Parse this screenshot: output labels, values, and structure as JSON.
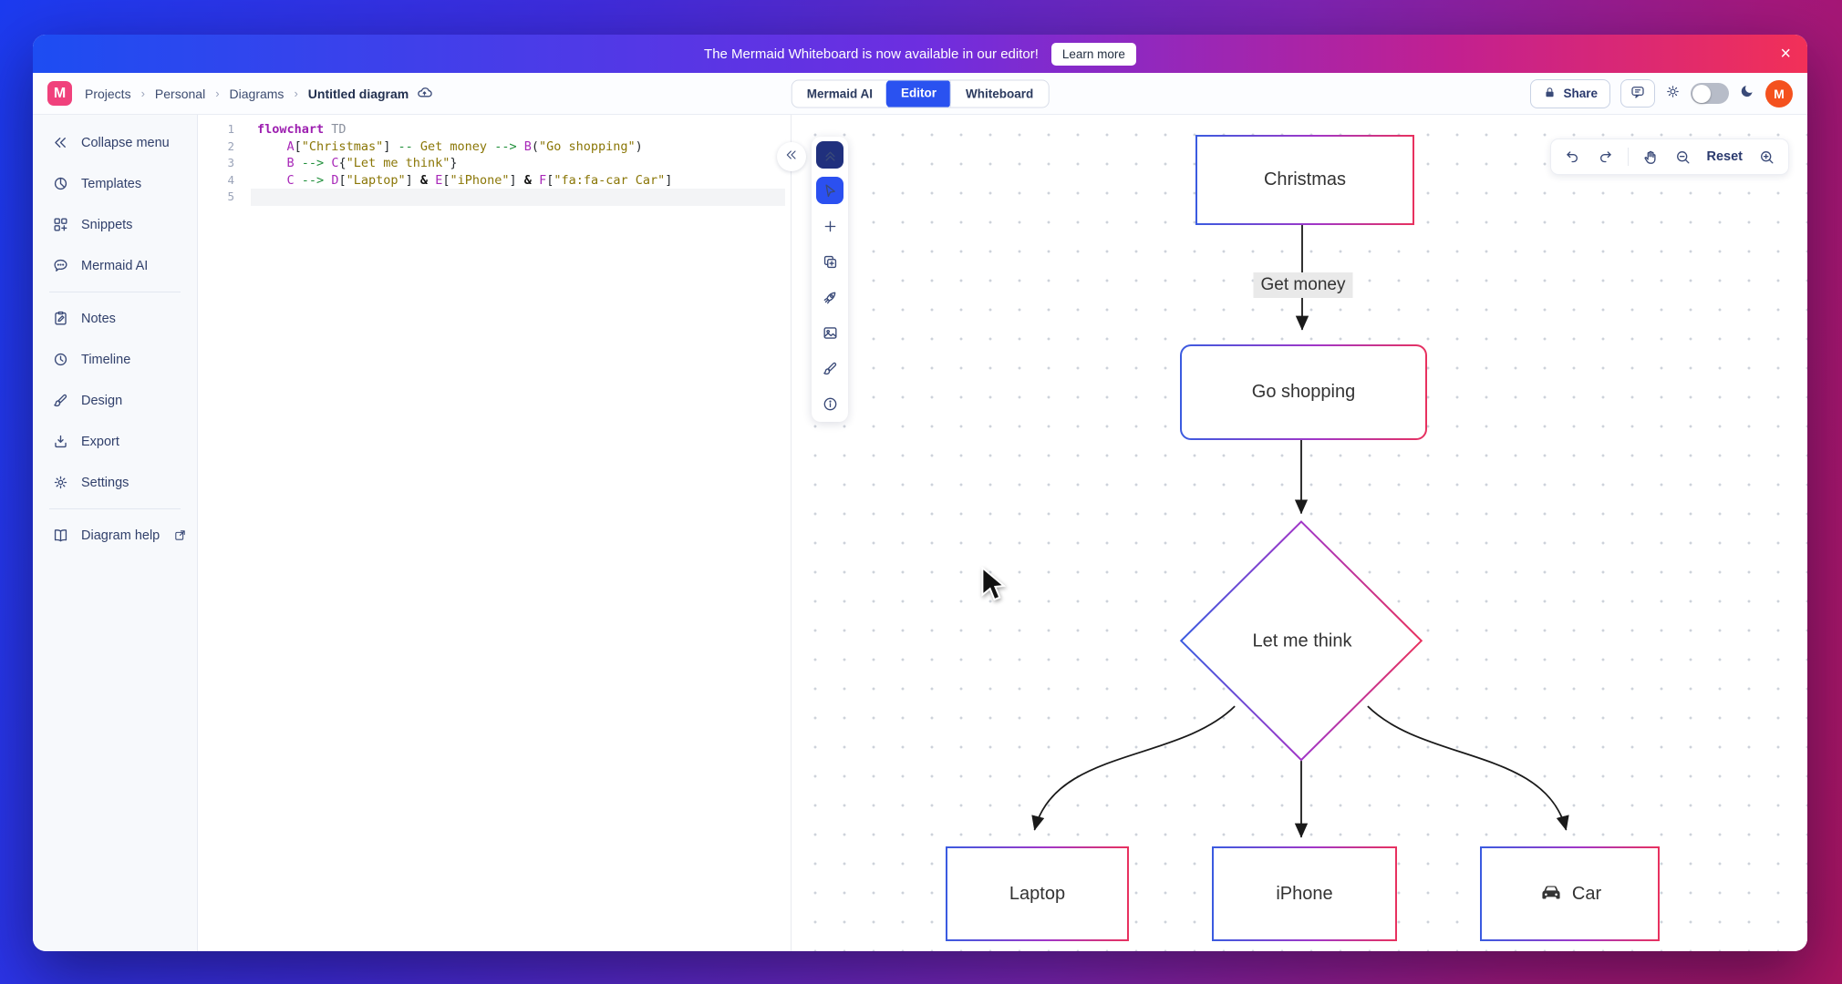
{
  "banner": {
    "message": "The Mermaid Whiteboard is now available in our editor!",
    "cta": "Learn more",
    "close": "×"
  },
  "header": {
    "logo_letter": "M",
    "breadcrumbs": [
      "Projects",
      "Personal",
      "Diagrams"
    ],
    "separator": "›",
    "doc_title": "Untitled diagram",
    "tabs": [
      "Mermaid AI",
      "Editor",
      "Whiteboard"
    ],
    "active_tab": "Editor",
    "share_label": "Share",
    "avatar_initial": "M"
  },
  "sidebar": {
    "items": [
      {
        "icon": "chevrons-left",
        "label": "Collapse menu"
      },
      {
        "icon": "templates",
        "label": "Templates"
      },
      {
        "icon": "snippets",
        "label": "Snippets"
      },
      {
        "icon": "chat",
        "label": "Mermaid AI",
        "divider_after": true
      },
      {
        "icon": "notes",
        "label": "Notes"
      },
      {
        "icon": "timeline",
        "label": "Timeline"
      },
      {
        "icon": "brush",
        "label": "Design"
      },
      {
        "icon": "export",
        "label": "Export"
      },
      {
        "icon": "gear",
        "label": "Settings",
        "divider_after": true
      },
      {
        "icon": "book",
        "label": "Diagram help",
        "external": true
      }
    ]
  },
  "editor": {
    "lines": [
      {
        "num": "1",
        "tokens": [
          [
            "kw",
            "flowchart"
          ],
          [
            "pln",
            " "
          ],
          [
            "dir",
            "TD"
          ]
        ]
      },
      {
        "num": "2",
        "tokens": [
          [
            "pln",
            "    "
          ],
          [
            "id",
            "A"
          ],
          [
            "pun",
            "["
          ],
          [
            "str",
            "\"Christmas\""
          ],
          [
            "pun",
            "]"
          ],
          [
            "pln",
            " "
          ],
          [
            "arr",
            "--"
          ],
          [
            "pln",
            " "
          ],
          [
            "str",
            "Get money"
          ],
          [
            "pln",
            " "
          ],
          [
            "arr",
            "-->"
          ],
          [
            "pln",
            " "
          ],
          [
            "id",
            "B"
          ],
          [
            "pun",
            "("
          ],
          [
            "str",
            "\"Go shopping\""
          ],
          [
            "pun",
            ")"
          ]
        ]
      },
      {
        "num": "3",
        "tokens": [
          [
            "pln",
            "    "
          ],
          [
            "id",
            "B"
          ],
          [
            "pln",
            " "
          ],
          [
            "arr",
            "-->"
          ],
          [
            "pln",
            " "
          ],
          [
            "id",
            "C"
          ],
          [
            "pun",
            "{"
          ],
          [
            "str",
            "\"Let me think\""
          ],
          [
            "pun",
            "}"
          ]
        ]
      },
      {
        "num": "4",
        "tokens": [
          [
            "pln",
            "    "
          ],
          [
            "id",
            "C"
          ],
          [
            "pln",
            " "
          ],
          [
            "arr",
            "-->"
          ],
          [
            "pln",
            " "
          ],
          [
            "id",
            "D"
          ],
          [
            "pun",
            "["
          ],
          [
            "str",
            "\"Laptop\""
          ],
          [
            "pun",
            "]"
          ],
          [
            "pln",
            " "
          ],
          [
            "amp",
            "&"
          ],
          [
            "pln",
            " "
          ],
          [
            "id",
            "E"
          ],
          [
            "pun",
            "["
          ],
          [
            "str",
            "\"iPhone\""
          ],
          [
            "pun",
            "]"
          ],
          [
            "pln",
            " "
          ],
          [
            "amp",
            "&"
          ],
          [
            "pln",
            " "
          ],
          [
            "id",
            "F"
          ],
          [
            "pun",
            "["
          ],
          [
            "str",
            "\"fa:fa-car Car\""
          ],
          [
            "pun",
            "]"
          ]
        ]
      },
      {
        "num": "5",
        "tokens": [],
        "active": true
      }
    ]
  },
  "canvas": {
    "tools": [
      {
        "icon": "chevrons-up",
        "name": "collapse-toolbar",
        "style": "dark"
      },
      {
        "icon": "cursor",
        "name": "select-tool",
        "style": "active"
      },
      {
        "icon": "plus",
        "name": "add-shape"
      },
      {
        "icon": "duplicate",
        "name": "duplicate-shape"
      },
      {
        "icon": "rocket",
        "name": "ai-rocket"
      },
      {
        "icon": "image",
        "name": "insert-image"
      },
      {
        "icon": "brush",
        "name": "theme-brush"
      },
      {
        "icon": "info",
        "name": "info"
      }
    ],
    "controls": [
      {
        "icon": "undo",
        "name": "undo"
      },
      {
        "icon": "redo",
        "name": "redo"
      },
      {
        "divider": true
      },
      {
        "icon": "pan",
        "name": "pan"
      },
      {
        "icon": "zoom-out",
        "name": "zoom-out"
      },
      {
        "label": "Reset",
        "name": "reset"
      },
      {
        "icon": "zoom-in",
        "name": "zoom-in"
      }
    ]
  },
  "diagram": {
    "edge_label": "Get money",
    "nodes": {
      "christmas": "Christmas",
      "go_shopping": "Go shopping",
      "decision": "Let me think",
      "laptop": "Laptop",
      "iphone": "iPhone",
      "car": "Car"
    }
  },
  "colors": {
    "accent_blue": "#2a52f0",
    "banner_from": "#1d4df2",
    "banner_to": "#f23058",
    "node_border_from": "#3a5be0",
    "node_border_to": "#e8315e",
    "logo_pink": "#f0417c",
    "avatar_orange": "#f4511e"
  }
}
